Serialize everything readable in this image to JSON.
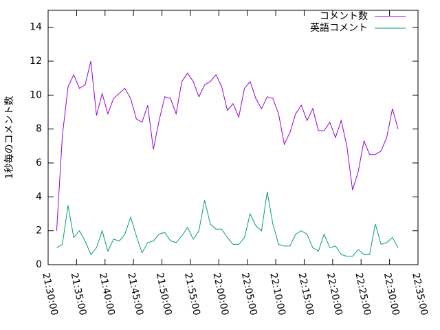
{
  "chart_data": {
    "type": "line",
    "ylabel": "1秒毎のコメント数",
    "x": [
      "21:31:30",
      "21:32:30",
      "21:33:30",
      "21:34:30",
      "21:35:30",
      "21:36:30",
      "21:37:30",
      "21:38:30",
      "21:39:30",
      "21:40:30",
      "21:41:30",
      "21:42:30",
      "21:43:30",
      "21:44:30",
      "21:45:30",
      "21:46:30",
      "21:47:30",
      "21:48:30",
      "21:49:30",
      "21:50:30",
      "21:51:30",
      "21:52:30",
      "21:53:30",
      "21:54:30",
      "21:55:30",
      "21:56:30",
      "21:57:30",
      "21:58:30",
      "21:59:30",
      "22:00:30",
      "22:01:30",
      "22:02:30",
      "22:03:30",
      "22:04:30",
      "22:05:30",
      "22:06:30",
      "22:07:30",
      "22:08:30",
      "22:09:30",
      "22:10:30",
      "22:11:30",
      "22:12:30",
      "22:13:30",
      "22:14:30",
      "22:15:30",
      "22:16:30",
      "22:17:30",
      "22:18:30",
      "22:19:30",
      "22:20:30",
      "22:21:30",
      "22:22:30",
      "22:23:30",
      "22:24:30",
      "22:25:30",
      "22:26:30",
      "22:27:30",
      "22:28:30",
      "22:29:30",
      "22:30:30",
      "22:31:30"
    ],
    "series": [
      {
        "name": "コメント数",
        "color": "#9400d3",
        "values": [
          2.0,
          7.6,
          10.5,
          11.2,
          10.4,
          10.6,
          12.0,
          8.8,
          10.1,
          8.9,
          9.8,
          10.1,
          10.4,
          9.8,
          8.6,
          8.4,
          9.4,
          6.8,
          8.5,
          9.9,
          9.8,
          8.9,
          10.8,
          11.3,
          10.8,
          9.9,
          10.6,
          10.8,
          11.2,
          10.5,
          9.1,
          9.5,
          8.7,
          10.4,
          10.8,
          9.8,
          9.2,
          9.9,
          9.8,
          8.9,
          7.1,
          7.8,
          8.9,
          9.4,
          8.5,
          9.2,
          7.9,
          7.9,
          8.4,
          7.5,
          8.5,
          7.0,
          4.4,
          5.5,
          7.3,
          6.5,
          6.5,
          6.7,
          7.5,
          9.2,
          8.0
        ]
      },
      {
        "name": "英語コメント",
        "color": "#009e73",
        "values": [
          1.0,
          1.2,
          3.5,
          1.6,
          2.0,
          1.4,
          0.6,
          1.0,
          2.0,
          0.8,
          1.5,
          1.4,
          1.8,
          2.8,
          1.7,
          0.7,
          1.3,
          1.4,
          1.8,
          1.9,
          1.4,
          1.3,
          1.7,
          2.2,
          1.5,
          2.0,
          3.8,
          2.4,
          2.1,
          2.1,
          1.6,
          1.2,
          1.2,
          1.6,
          3.0,
          2.3,
          2.0,
          4.3,
          2.4,
          1.2,
          1.1,
          1.1,
          1.8,
          2.0,
          1.8,
          1.0,
          0.8,
          1.8,
          1.0,
          1.1,
          0.6,
          0.5,
          0.5,
          0.9,
          0.6,
          0.6,
          2.4,
          1.2,
          1.3,
          1.6,
          1.0
        ]
      }
    ],
    "xlim": [
      "21:30:00",
      "22:35:00"
    ],
    "xticks": [
      "21:30:00",
      "21:35:00",
      "21:40:00",
      "21:45:00",
      "21:50:00",
      "21:55:00",
      "22:00:00",
      "22:05:00",
      "22:10:00",
      "22:15:00",
      "22:20:00",
      "22:25:00",
      "22:30:00",
      "22:35:00"
    ],
    "ylim": [
      0,
      15
    ],
    "yticks": [
      0,
      2,
      4,
      6,
      8,
      10,
      12,
      14
    ],
    "legend": "top-right"
  }
}
